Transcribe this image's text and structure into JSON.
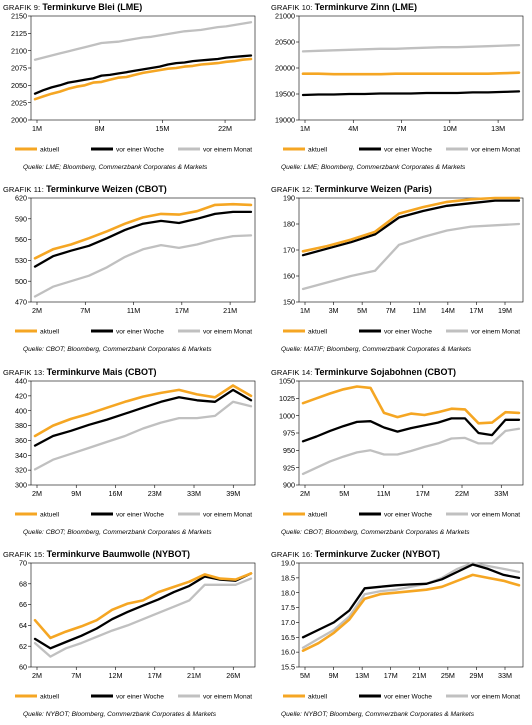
{
  "series_colors": [
    "#f5a623",
    "#000000",
    "#c0c0c0"
  ],
  "chart_data": [
    {
      "type": "line",
      "title_prefix": "GRAFIK 9:",
      "title": "Terminkurve Blei (LME)",
      "ylim": [
        2000,
        2150
      ],
      "yticks": [
        "2150",
        "2125",
        "2100",
        "2075",
        "2050",
        "2025",
        "2000"
      ],
      "xticks": [
        "1M",
        "8M",
        "15M",
        "22M"
      ],
      "x": [
        1,
        2,
        3,
        4,
        5,
        6,
        7,
        8,
        9,
        10,
        11,
        12,
        13,
        14,
        15,
        16,
        17,
        18,
        19,
        20,
        21,
        22,
        23,
        24,
        25,
        26,
        27
      ],
      "series": [
        {
          "name": "aktuell",
          "values": [
            2030,
            2034,
            2038,
            2041,
            2045,
            2048,
            2050,
            2054,
            2055,
            2058,
            2061,
            2062,
            2065,
            2068,
            2070,
            2072,
            2074,
            2075,
            2077,
            2078,
            2080,
            2081,
            2082,
            2084,
            2085,
            2087,
            2088
          ]
        },
        {
          "name": "vor einer Woche",
          "values": [
            2038,
            2043,
            2047,
            2050,
            2054,
            2056,
            2058,
            2060,
            2064,
            2065,
            2067,
            2069,
            2071,
            2073,
            2075,
            2077,
            2080,
            2082,
            2083,
            2085,
            2086,
            2087,
            2088,
            2090,
            2091,
            2092,
            2093
          ]
        },
        {
          "name": "vor einem Monat",
          "values": [
            2087,
            2090,
            2093,
            2096,
            2099,
            2102,
            2105,
            2108,
            2111,
            2112,
            2113,
            2115,
            2117,
            2119,
            2120,
            2122,
            2124,
            2126,
            2128,
            2129,
            2130,
            2132,
            2134,
            2135,
            2137,
            2139,
            2141
          ]
        }
      ],
      "legend": [
        "aktuell",
        "vor einer Woche",
        "vor einem Monat"
      ],
      "source": "Quelle: LME; Bloomberg, Commerzbank Corporates & Markets"
    },
    {
      "type": "line",
      "title_prefix": "GRAFIK 10:",
      "title": "Terminkurve Zinn (LME)",
      "ylim": [
        19000,
        21000
      ],
      "yticks": [
        "21000",
        "20500",
        "20000",
        "19500",
        "19000"
      ],
      "xticks": [
        "1M",
        "4M",
        "7M",
        "10M",
        "13M"
      ],
      "x": [
        1,
        2,
        3,
        4,
        5,
        6,
        7,
        8,
        9,
        10,
        11,
        12,
        13,
        14,
        15
      ],
      "series": [
        {
          "name": "aktuell",
          "values": [
            19890,
            19890,
            19880,
            19880,
            19880,
            19880,
            19890,
            19890,
            19890,
            19890,
            19890,
            19890,
            19890,
            19900,
            19910
          ]
        },
        {
          "name": "vor einer Woche",
          "values": [
            19480,
            19490,
            19490,
            19500,
            19500,
            19510,
            19510,
            19510,
            19520,
            19520,
            19520,
            19530,
            19530,
            19540,
            19550
          ]
        },
        {
          "name": "vor einem Monat",
          "values": [
            20320,
            20330,
            20340,
            20350,
            20360,
            20370,
            20370,
            20380,
            20390,
            20400,
            20400,
            20410,
            20420,
            20430,
            20440
          ]
        }
      ],
      "legend": [
        "aktuell",
        "vor einer Woche",
        "vor einem Monat"
      ],
      "source": "Quelle: LME; Bloomberg, Commerzbank Corporates & Markets"
    },
    {
      "type": "line",
      "title_prefix": "GRAFIK 11:",
      "title": "Terminkurve Weizen (CBOT)",
      "ylim": [
        470,
        620
      ],
      "yticks": [
        "620",
        "590",
        "560",
        "530",
        "500",
        "470"
      ],
      "xticks": [
        "2M",
        "7M",
        "11M",
        "17M",
        "21M"
      ],
      "x": [
        2,
        4,
        6,
        8,
        10,
        12,
        14,
        16,
        18,
        20,
        22,
        24,
        26
      ],
      "series": [
        {
          "name": "aktuell",
          "values": [
            533,
            546,
            553,
            562,
            572,
            583,
            592,
            597,
            596,
            601,
            610,
            611,
            610
          ]
        },
        {
          "name": "vor einer Woche",
          "values": [
            521,
            536,
            544,
            551,
            562,
            574,
            583,
            587,
            584,
            590,
            597,
            600,
            600
          ]
        },
        {
          "name": "vor einem Monat",
          "values": [
            478,
            492,
            500,
            508,
            520,
            535,
            546,
            552,
            548,
            553,
            560,
            565,
            566
          ]
        }
      ],
      "legend": [
        "aktuell",
        "vor einer Woche",
        "vor einem Monat"
      ],
      "source": "Quelle: CBOT; Bloomberg, Commerzbank Corporates & Markets"
    },
    {
      "type": "line",
      "title_prefix": "GRAFIK 12:",
      "title": "Terminkurve Weizen (Paris)",
      "ylim": [
        150,
        190
      ],
      "yticks": [
        "190",
        "180",
        "170",
        "160",
        "150"
      ],
      "xticks": [
        "1M",
        "3M",
        "5M",
        "7M",
        "11M",
        "14M",
        "17M",
        "19M"
      ],
      "x": [
        1,
        3,
        5,
        7,
        9,
        11,
        13,
        15,
        17,
        19
      ],
      "series": [
        {
          "name": "aktuell",
          "values": [
            169.5,
            171.5,
            174,
            177,
            184,
            186.5,
            188.5,
            189.5,
            190,
            190
          ]
        },
        {
          "name": "vor einer Woche",
          "values": [
            168,
            170.5,
            173,
            176,
            182.5,
            185,
            187,
            188,
            189,
            189
          ]
        },
        {
          "name": "vor einem Monat",
          "values": [
            155,
            157.5,
            160,
            162,
            172,
            175,
            177.5,
            179,
            179.5,
            180
          ]
        }
      ],
      "legend": [
        "aktuell",
        "vor einer Woche",
        "vor einem Monat"
      ],
      "source": "Quelle: MATIF; Bloomberg, Commerzbank Corporates & Markets"
    },
    {
      "type": "line",
      "title_prefix": "GRAFIK 13:",
      "title": "Terminkurve Mais (CBOT)",
      "ylim": [
        300,
        440
      ],
      "yticks": [
        "440",
        "420",
        "400",
        "380",
        "360",
        "340",
        "320",
        "300"
      ],
      "xticks": [
        "2M",
        "9M",
        "16M",
        "23M",
        "33M",
        "39M"
      ],
      "x": [
        2,
        5,
        8,
        11,
        14,
        17,
        20,
        23,
        26,
        29,
        32,
        35,
        38
      ],
      "series": [
        {
          "name": "aktuell",
          "values": [
            366,
            380,
            389,
            396,
            404,
            412,
            419,
            424,
            428,
            422,
            418,
            434,
            420
          ]
        },
        {
          "name": "vor einer Woche",
          "values": [
            353,
            366,
            373,
            381,
            388,
            396,
            404,
            412,
            418,
            414,
            412,
            428,
            414
          ]
        },
        {
          "name": "vor einem Monat",
          "values": [
            321,
            334,
            342,
            350,
            358,
            366,
            376,
            384,
            390,
            390,
            393,
            412,
            406
          ]
        }
      ],
      "legend": [
        "aktuell",
        "vor einer Woche",
        "vor einem Monat"
      ],
      "source": "Quelle: CBOT; Bloomberg, Commerzbank Corporates & Markets"
    },
    {
      "type": "line",
      "title_prefix": "GRAFIK 14:",
      "title": "Terminkurve Sojabohnen (CBOT)",
      "ylim": [
        900,
        1050
      ],
      "yticks": [
        "1050",
        "1025",
        "1000",
        "975",
        "950",
        "925",
        "900"
      ],
      "xticks": [
        "2M",
        "5M",
        "11M",
        "17M",
        "22M",
        "33M"
      ],
      "x": [
        2,
        4,
        6,
        8,
        10,
        12,
        14,
        16,
        18,
        20,
        22,
        24,
        26,
        28,
        30,
        32,
        34
      ],
      "series": [
        {
          "name": "aktuell",
          "values": [
            1018,
            1025,
            1032,
            1038,
            1042,
            1040,
            1004,
            998,
            1003,
            1001,
            1005,
            1010,
            1009,
            989,
            990,
            1005,
            1004
          ]
        },
        {
          "name": "vor einer Woche",
          "values": [
            963,
            970,
            978,
            985,
            991,
            992,
            983,
            977,
            982,
            986,
            990,
            996,
            996,
            975,
            972,
            994,
            994
          ]
        },
        {
          "name": "vor einem Monat",
          "values": [
            916,
            925,
            934,
            941,
            947,
            950,
            944,
            944,
            949,
            955,
            960,
            967,
            968,
            960,
            960,
            978,
            981
          ]
        }
      ],
      "legend": [
        "aktuell",
        "vor einer Woche",
        "vor einem Monat"
      ],
      "source": "Quelle: CBOT; Bloomberg, Commerzbank Corporates & Markets"
    },
    {
      "type": "line",
      "title_prefix": "GRAFIK 15:",
      "title": "Terminkurve Baumwolle (NYBOT)",
      "ylim": [
        60,
        70
      ],
      "yticks": [
        "70",
        "68",
        "66",
        "64",
        "62",
        "60"
      ],
      "xticks": [
        "2M",
        "7M",
        "12M",
        "17M",
        "21M",
        "26M"
      ],
      "x": [
        2,
        4,
        6,
        8,
        10,
        12,
        14,
        16,
        18,
        20,
        22,
        24,
        26,
        28,
        30
      ],
      "series": [
        {
          "name": "aktuell",
          "values": [
            64.5,
            62.8,
            63.4,
            63.9,
            64.5,
            65.5,
            66.1,
            66.4,
            67.2,
            67.7,
            68.2,
            68.9,
            68.5,
            68.4,
            69.0
          ]
        },
        {
          "name": "vor einer Woche",
          "values": [
            62.7,
            61.8,
            62.4,
            63.0,
            63.7,
            64.6,
            65.3,
            65.9,
            66.5,
            67.2,
            67.8,
            68.7,
            68.4,
            68.3,
            69.0
          ]
        },
        {
          "name": "vor einem Monat",
          "values": [
            62.3,
            61.0,
            61.8,
            62.3,
            62.9,
            63.5,
            64.0,
            64.6,
            65.2,
            65.8,
            66.4,
            67.9,
            67.9,
            67.9,
            68.5
          ]
        }
      ],
      "legend": [
        "aktuell",
        "vor einer Woche",
        "vor einem Monat"
      ],
      "source": "Quelle: NYBOT; Bloomberg, Commerzbank Corporates & Markets"
    },
    {
      "type": "line",
      "title_prefix": "GRAFIK 16:",
      "title": "Terminkurve Zucker (NYBOT)",
      "ylim": [
        15.5,
        19.0
      ],
      "yticks": [
        "19.0",
        "18.5",
        "18.0",
        "17.5",
        "17.0",
        "16.5",
        "16.0",
        "15.5"
      ],
      "xticks": [
        "5M",
        "9M",
        "13M",
        "17M",
        "21M",
        "25M",
        "29M",
        "33M"
      ],
      "x": [
        5,
        7,
        9,
        11,
        13,
        15,
        17,
        19,
        21,
        23,
        25,
        27,
        29,
        31,
        33
      ],
      "series": [
        {
          "name": "aktuell",
          "values": [
            16.05,
            16.3,
            16.65,
            17.1,
            17.8,
            17.95,
            18.0,
            18.05,
            18.1,
            18.2,
            18.4,
            18.6,
            18.5,
            18.4,
            18.25
          ]
        },
        {
          "name": "vor einer Woche",
          "values": [
            16.5,
            16.75,
            17.0,
            17.4,
            18.15,
            18.2,
            18.25,
            18.28,
            18.3,
            18.45,
            18.7,
            18.95,
            18.8,
            18.6,
            18.5
          ]
        },
        {
          "name": "vor einem Monat",
          "values": [
            16.15,
            16.45,
            16.75,
            17.2,
            17.95,
            18.05,
            18.1,
            18.2,
            18.3,
            18.5,
            18.8,
            19.0,
            18.9,
            18.8,
            18.7
          ]
        }
      ],
      "legend": [
        "aktuell",
        "vor einer Woche",
        "vor einem Monat"
      ],
      "source": "Quelle: NYBOT; Bloomberg, Commerzbank Corporates & Markets"
    }
  ]
}
